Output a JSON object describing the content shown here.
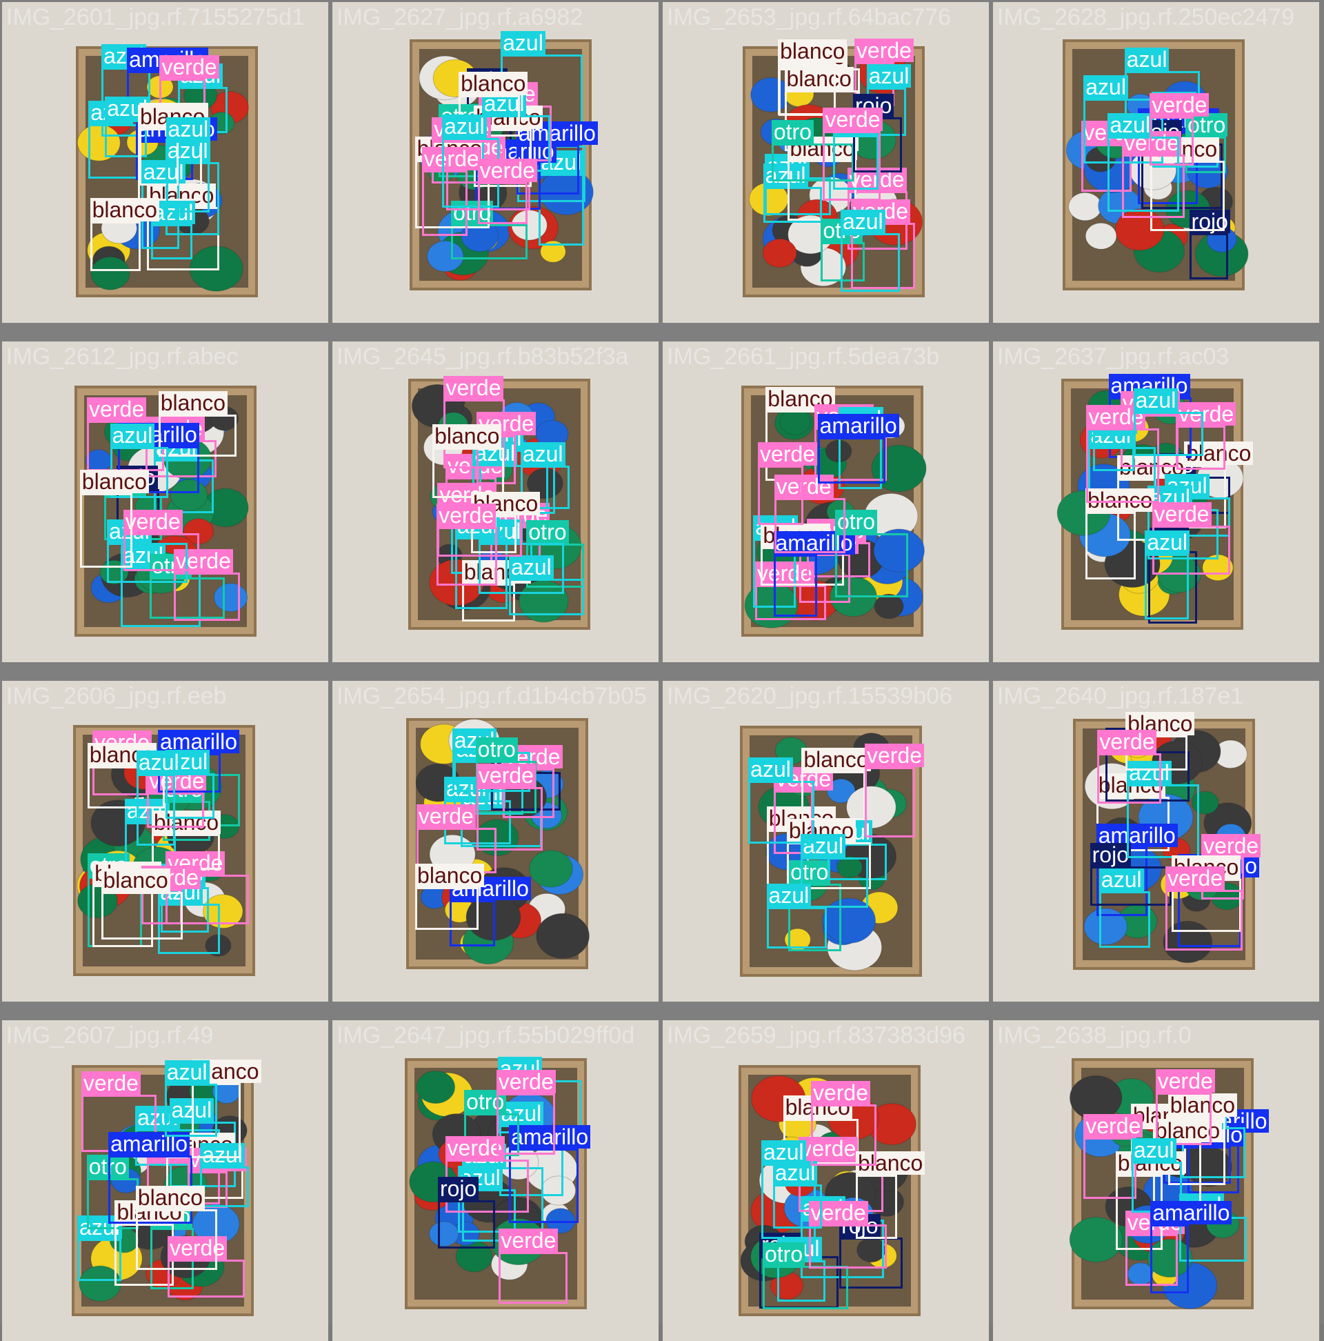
{
  "classes": {
    "azul": {
      "color": "#19d3de",
      "text": "#ffffff"
    },
    "verde": {
      "color": "#ff77cf",
      "text": "#ffffff"
    },
    "blanco": {
      "color": "#f7f3ee",
      "text": "#5a1010"
    },
    "amarillo": {
      "color": "#1430f0",
      "text": "#ffffff"
    },
    "rojo": {
      "color": "#0d1a66",
      "text": "#ffffff"
    },
    "otro": {
      "color": "#14c9a8",
      "text": "#ffffff"
    }
  },
  "tiles": [
    {
      "name": "IMG_2601_jpg.rf.7155275d1",
      "labels": [
        "blanco",
        "azul",
        "azul",
        "amarillo",
        "azul",
        "azul",
        "verde",
        "amarillo",
        "azul",
        "azul",
        "blanco",
        "azul",
        "blanco",
        "blanco",
        "azul"
      ]
    },
    {
      "name": "IMG_2627_jpg.rf.a6982",
      "labels": [
        "rojo",
        "azul",
        "azul",
        "otro",
        "azul",
        "amarillo",
        "otro",
        "amarillo",
        "verde",
        "verde",
        "blanco",
        "blanco",
        "azul",
        "blanco",
        "verde",
        "verde",
        "azul",
        "verde"
      ]
    },
    {
      "name": "IMG_2653_jpg.rf.64bac776",
      "labels": [
        "azul",
        "verde",
        "blanco",
        "verde",
        "azul",
        "blanco",
        "azul",
        "blanco",
        "otro",
        "otro",
        "verde",
        "azul",
        "rojo",
        "blanco",
        "azul",
        "verde"
      ]
    },
    {
      "name": "IMG_2628_jpg.rf.250ec2479",
      "labels": [
        "rojo",
        "amarillo",
        "azul",
        "azul",
        "rojo",
        "verde",
        "otro",
        "blanco",
        "azul",
        "verde",
        "azul",
        "verde"
      ]
    },
    {
      "name": "IMG_2612_jpg.rf.abec",
      "labels": [
        "azul",
        "azul",
        "otro",
        "rojo",
        "otro",
        "verde",
        "verde",
        "azul",
        "verde",
        "amarillo",
        "blanco",
        "verde",
        "azul",
        "blanco"
      ]
    },
    {
      "name": "IMG_2645_jpg.rf.b83b52f3a",
      "labels": [
        "azul",
        "verde",
        "verde",
        "otro",
        "azul",
        "azul",
        "blanco",
        "azul",
        "azul",
        "azul",
        "verde",
        "verde",
        "verde",
        "azul",
        "blanco",
        "blanco",
        "verde"
      ]
    },
    {
      "name": "IMG_2661_jpg.rf.5dea73b",
      "labels": [
        "blanco",
        "verde",
        "azul",
        "verde",
        "verde",
        "verde",
        "blanco",
        "amarillo",
        "otro",
        "verde",
        "azul",
        "verde",
        "amarillo"
      ]
    },
    {
      "name": "IMG_2637_jpg.rf.ac03",
      "labels": [
        "rojo",
        "blanco",
        "amarillo",
        "blanco",
        "verde",
        "azul",
        "azul",
        "rojo",
        "azul",
        "azul",
        "blanco",
        "verde",
        "verde",
        "azul",
        "verde",
        "azul"
      ]
    },
    {
      "name": "IMG_2606_jpg.rf.eeb",
      "labels": [
        "azul",
        "azul",
        "otro",
        "otro",
        "azul",
        "verde",
        "otro",
        "verde",
        "blanco",
        "blanco",
        "verde",
        "amarillo",
        "blanco",
        "verde",
        "azul",
        "blanco",
        "azul"
      ]
    },
    {
      "name": "IMG_2654_jpg.rf.d1b4cb7b05",
      "labels": [
        "azul",
        "azul",
        "azul",
        "rojo",
        "amarillo",
        "verde",
        "azul",
        "otro",
        "verde",
        "verde",
        "blanco"
      ]
    },
    {
      "name": "IMG_2620_jpg.rf.15539b06",
      "labels": [
        "blanco",
        "otro",
        "azul",
        "blanco",
        "verde",
        "azul",
        "azul",
        "azul",
        "blanco",
        "verde"
      ]
    },
    {
      "name": "IMG_2640_jpg.rf.187e1",
      "labels": [
        "amarillo",
        "blanco",
        "amarillo",
        "azul",
        "rojo",
        "rojo",
        "verde",
        "azul",
        "blanco",
        "blanco",
        "verde",
        "verde"
      ]
    },
    {
      "name": "IMG_2607_jpg.rf.49",
      "labels": [
        "azul",
        "azul",
        "otro",
        "azul",
        "verde",
        "otro",
        "verde",
        "blanco",
        "blanco",
        "verde",
        "amarillo",
        "azul",
        "blanco",
        "verde",
        "azul",
        "blanco"
      ]
    },
    {
      "name": "IMG_2647_jpg.rf.55b029ff0d",
      "labels": [
        "azul",
        "azul",
        "azul",
        "azul",
        "amarillo",
        "verde",
        "otro",
        "verde",
        "rojo",
        "verde"
      ]
    },
    {
      "name": "IMG_2659_jpg.rf.837383d96",
      "labels": [
        "rojo",
        "azul",
        "blanco",
        "azul",
        "rojo",
        "verde",
        "otro",
        "blanco",
        "azul",
        "verde",
        "azul",
        "verde"
      ]
    },
    {
      "name": "IMG_2638_jpg.rf.0",
      "labels": [
        "amarillo",
        "blanco",
        "amarillo",
        "azul",
        "blanco",
        "verde",
        "azul",
        "blanco",
        "verde",
        "blanco",
        "verde",
        "azul",
        "amarillo"
      ]
    }
  ]
}
